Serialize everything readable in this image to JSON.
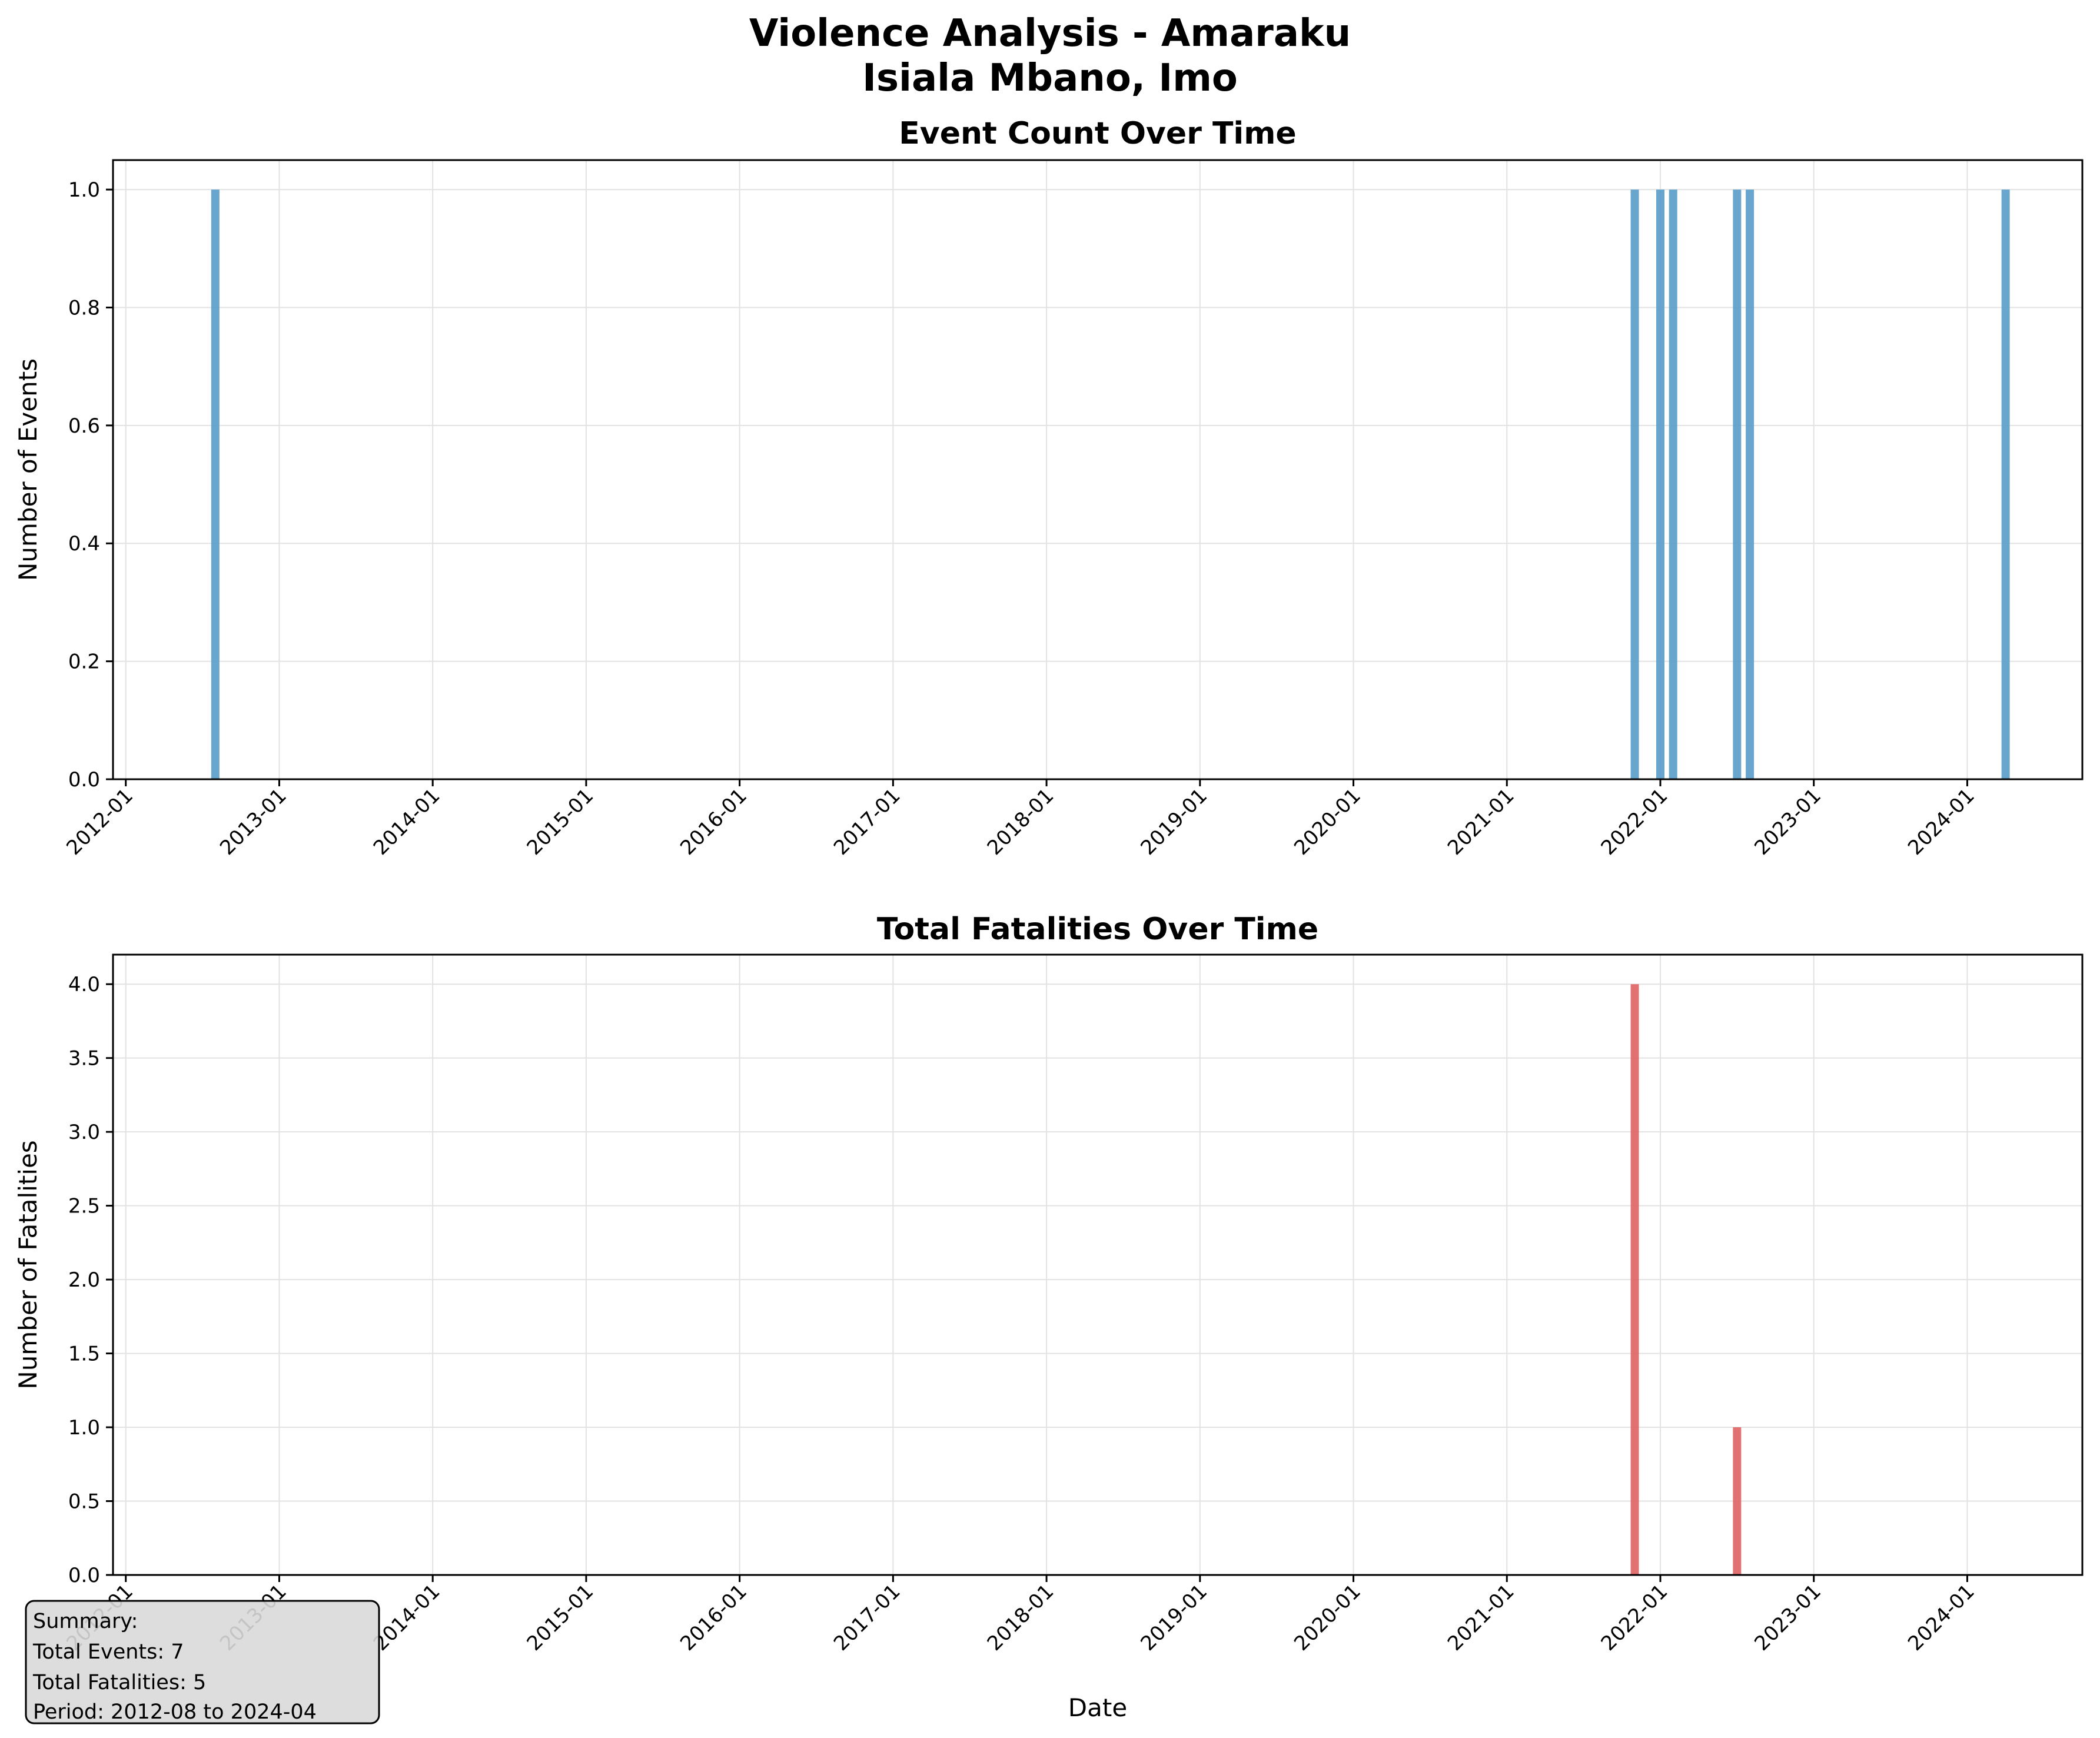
{
  "figure": {
    "title_line1": "Violence Analysis - Amaraku",
    "title_line2": "Isiala Mbano, Imo"
  },
  "colors": {
    "events_bar": "#5b9ec9",
    "fatalities_bar": "#e06666",
    "grid": "#e2e2e2",
    "summary_bg": "#d9d9d9"
  },
  "chart_data": [
    {
      "type": "bar",
      "title": "Event Count Over Time",
      "xlabel": "",
      "ylabel": "Number of Events",
      "x_axis": "date (monthly)",
      "xlim": [
        "2011-12",
        "2024-10"
      ],
      "ylim": [
        0,
        1.05
      ],
      "yticks": [
        "0.0",
        "0.2",
        "0.4",
        "0.6",
        "0.8",
        "1.0"
      ],
      "xticks": [
        "2012-01",
        "2013-01",
        "2014-01",
        "2015-01",
        "2016-01",
        "2017-01",
        "2018-01",
        "2019-01",
        "2020-01",
        "2021-01",
        "2022-01",
        "2023-01",
        "2024-01"
      ],
      "grid": true,
      "x": [
        "2012-08",
        "2021-11",
        "2022-01",
        "2022-02",
        "2022-07",
        "2022-08",
        "2024-04"
      ],
      "values": [
        1,
        1,
        1,
        1,
        1,
        1,
        1
      ]
    },
    {
      "type": "bar",
      "title": "Total Fatalities Over Time",
      "xlabel": "Date",
      "ylabel": "Number of Fatalities",
      "x_axis": "date (monthly)",
      "xlim": [
        "2011-12",
        "2024-10"
      ],
      "ylim": [
        0,
        4.2
      ],
      "yticks": [
        "0.0",
        "0.5",
        "1.0",
        "1.5",
        "2.0",
        "2.5",
        "3.0",
        "3.5",
        "4.0"
      ],
      "xticks": [
        "2012-01",
        "2013-01",
        "2014-01",
        "2015-01",
        "2016-01",
        "2017-01",
        "2018-01",
        "2019-01",
        "2020-01",
        "2021-01",
        "2022-01",
        "2023-01",
        "2024-01"
      ],
      "grid": true,
      "x": [
        "2021-11",
        "2022-07"
      ],
      "values": [
        4,
        1
      ]
    }
  ],
  "summary": {
    "heading": "Summary:",
    "events": "Total Events: 7",
    "fatalities": "Total Fatalities: 5",
    "period": "Period: 2012-08 to 2024-04"
  }
}
